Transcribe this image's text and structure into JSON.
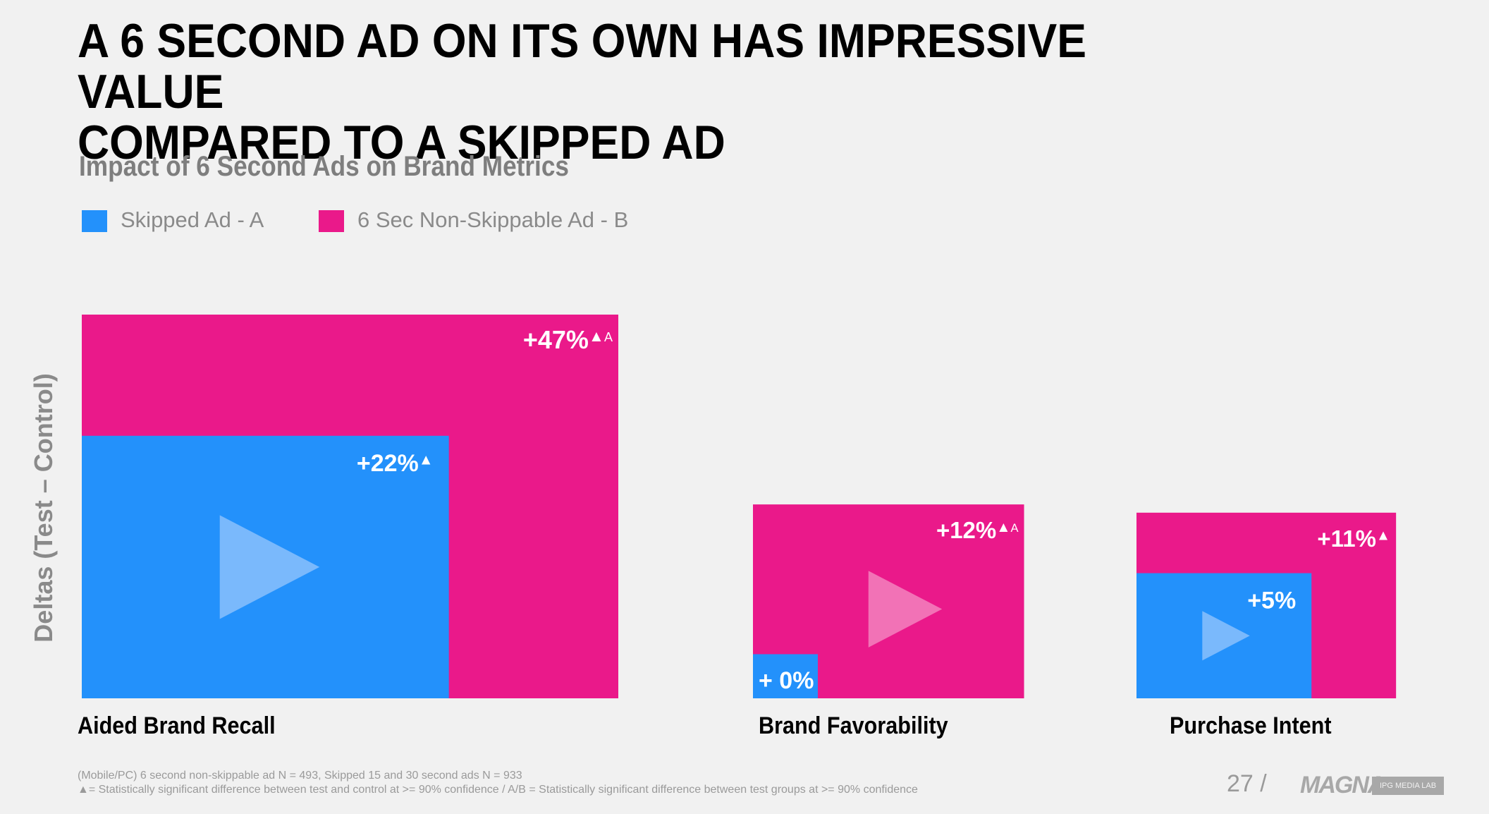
{
  "headline": {
    "line1": "A 6 SECOND AD ON ITS OWN HAS IMPRESSIVE VALUE",
    "line2": "COMPARED TO A SKIPPED AD"
  },
  "colors": {
    "skipped": "#2391fb",
    "nonskip": "#ea198a",
    "play_on_blue": "#7ab9fc",
    "play_on_pink": "#f272b6"
  },
  "chart_data": {
    "type": "bar",
    "title": "Impact of 6 Second Ads on Brand Metrics",
    "ylabel": "Deltas (Test – Control)",
    "legend_position": "top-left",
    "grid": false,
    "categories": [
      "Aided Brand Recall",
      "Brand Favorability",
      "Purchase Intent"
    ],
    "series": [
      {
        "name": "Skipped Ad - A",
        "values": [
          22,
          0,
          5
        ],
        "labels": [
          "+22%",
          "+ 0%",
          "+5%"
        ],
        "significant": [
          true,
          false,
          false
        ],
        "group_significant": [
          false,
          false,
          false
        ]
      },
      {
        "name": "6 Sec Non-Skippable Ad - B",
        "values": [
          47,
          12,
          11
        ],
        "labels": [
          "+47%",
          "+12%",
          "+11%"
        ],
        "significant": [
          true,
          true,
          true
        ],
        "group_significant": [
          true,
          true,
          false
        ]
      }
    ]
  },
  "sig_marks": {
    "triangle": "▲",
    "group": "A"
  },
  "footnotes": {
    "line1": "(Mobile/PC) 6 second non-skippable ad N = 493, Skipped 15 and 30 second ads N = 933",
    "line2": "▲= Statistically significant difference between test and control at >= 90% confidence     /    A/B = Statistically significant difference between test groups at >= 90% confidence"
  },
  "page_number": "27 /",
  "logo": "MAGNA",
  "badge": "IPG MEDIA LAB"
}
